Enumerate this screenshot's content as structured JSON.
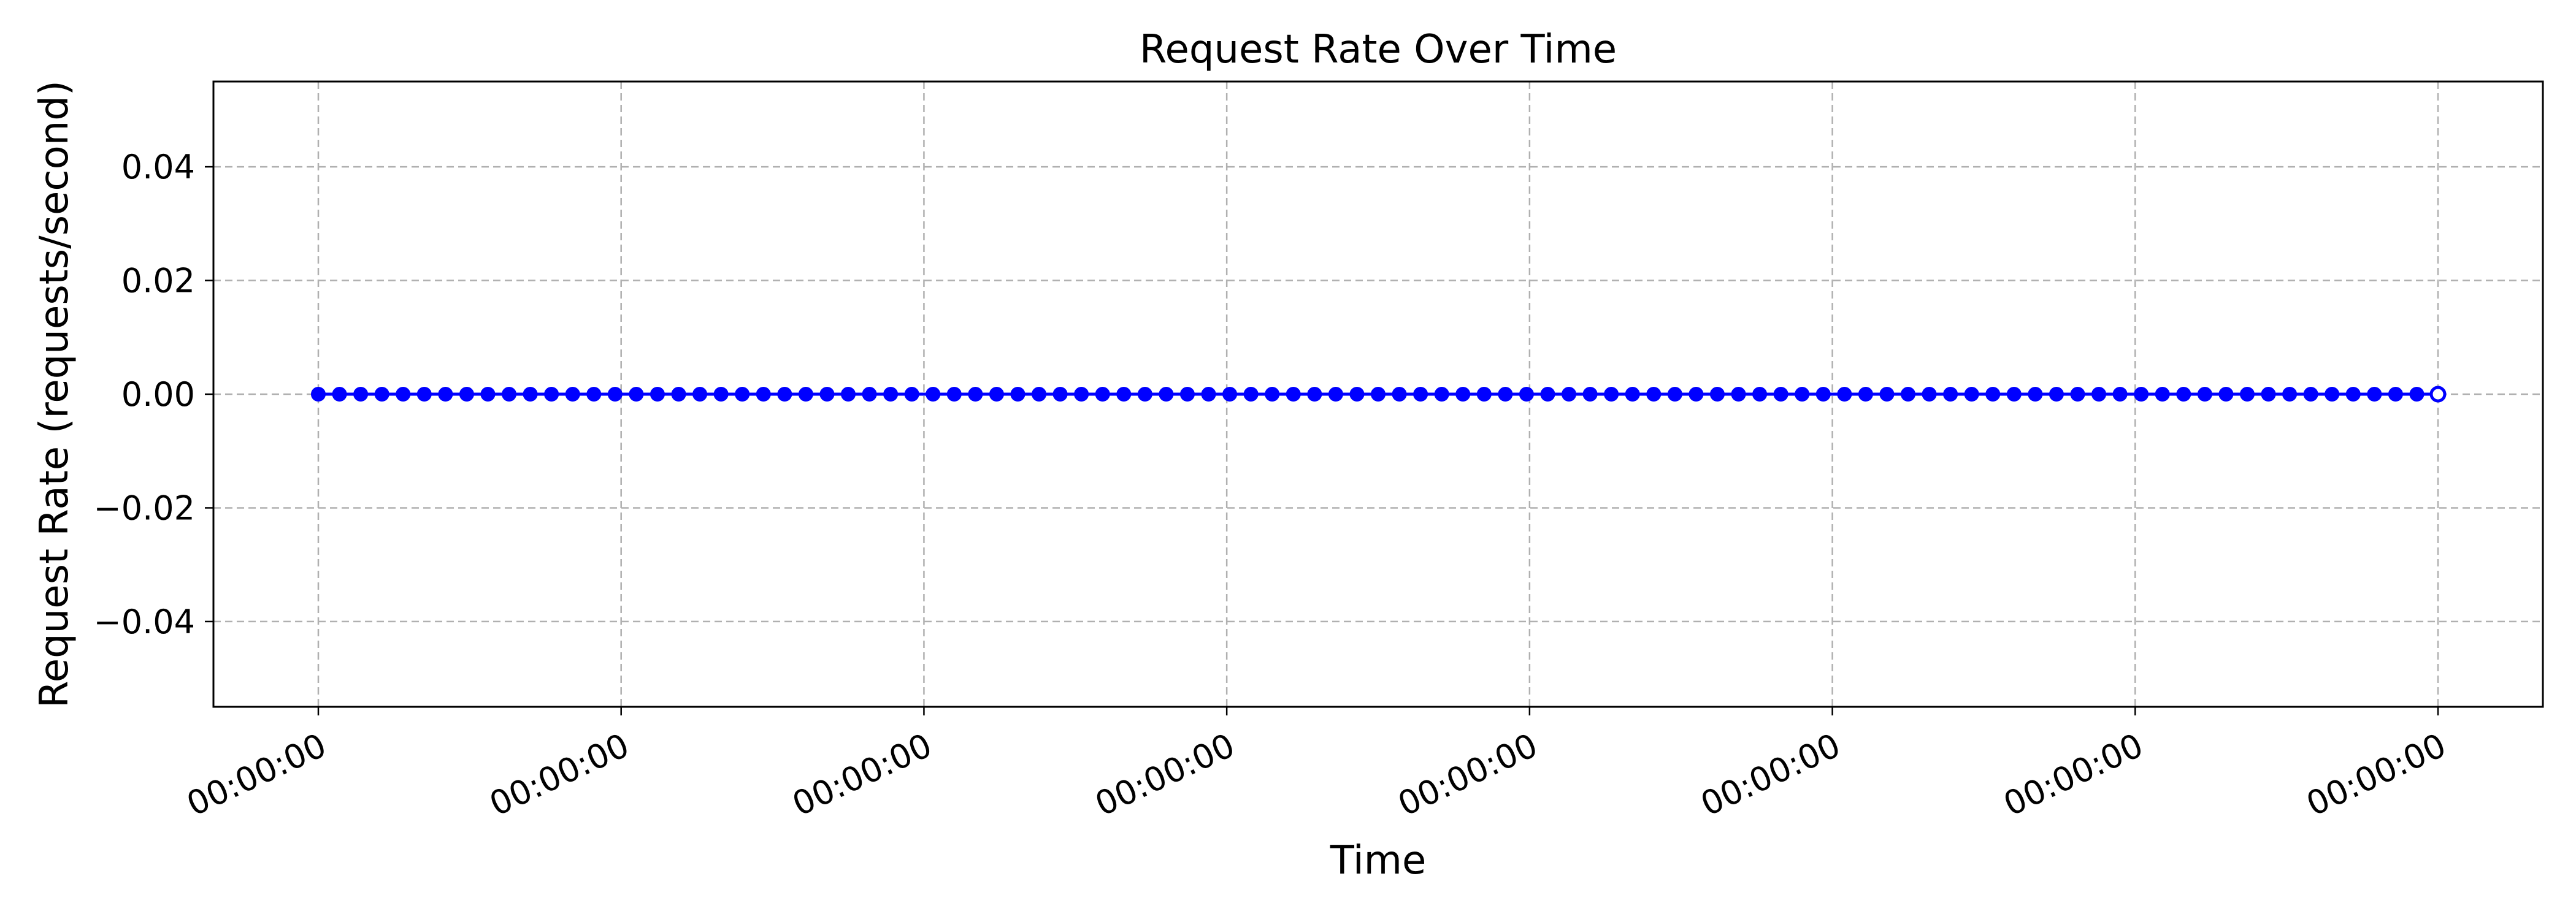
{
  "chart_data": {
    "type": "line",
    "title": "Request Rate Over Time",
    "xlabel": "Time",
    "ylabel": "Request Rate (requests/second)",
    "x_tick_labels": [
      "00:00:00",
      "00:00:00",
      "00:00:00",
      "00:00:00",
      "00:00:00",
      "00:00:00",
      "00:00:00",
      "00:00:00"
    ],
    "y_ticks": [
      0.04,
      0.02,
      0.0,
      -0.02,
      -0.04
    ],
    "y_tick_labels": [
      "0.04",
      "0.02",
      "0.00",
      "−0.02",
      "−0.04"
    ],
    "ylim": [
      -0.055,
      0.055
    ],
    "grid": true,
    "grid_style": "dashed",
    "series": [
      {
        "color": "#0000ff",
        "marker": "circle",
        "values": [
          0,
          0,
          0,
          0,
          0,
          0,
          0,
          0,
          0,
          0,
          0,
          0,
          0,
          0,
          0,
          0,
          0,
          0,
          0,
          0,
          0,
          0,
          0,
          0,
          0,
          0,
          0,
          0,
          0,
          0,
          0,
          0,
          0,
          0,
          0,
          0,
          0,
          0,
          0,
          0,
          0,
          0,
          0,
          0,
          0,
          0,
          0,
          0,
          0,
          0,
          0,
          0,
          0,
          0,
          0,
          0,
          0,
          0,
          0,
          0,
          0,
          0,
          0,
          0,
          0,
          0,
          0,
          0,
          0,
          0,
          0,
          0,
          0,
          0,
          0,
          0,
          0,
          0,
          0,
          0,
          0,
          0,
          0,
          0,
          0,
          0,
          0,
          0,
          0,
          0,
          0,
          0,
          0,
          0,
          0,
          0,
          0,
          0,
          0,
          0,
          0
        ]
      }
    ]
  }
}
